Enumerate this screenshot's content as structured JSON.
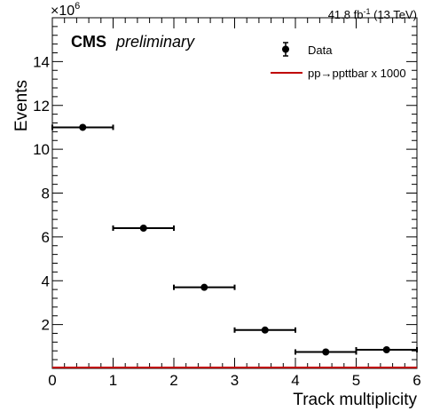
{
  "header": {
    "lumi_text": "41.8 fb",
    "lumi_sup": "-1",
    "lumi_energy": " (13 TeV)"
  },
  "labels": {
    "cms": "CMS",
    "preliminary": "preliminary",
    "exponent_base": "×10",
    "exponent_power": "6"
  },
  "legend": {
    "entries": [
      {
        "label": "Data",
        "style": "marker",
        "color": "#000000"
      },
      {
        "label": "pp→ppttbar x 1000",
        "style": "line",
        "color": "#c00000"
      }
    ]
  },
  "chart_data": {
    "type": "scatter",
    "xlabel": "Track multiplicity",
    "ylabel": "Events",
    "xlim": [
      0,
      6
    ],
    "ylim": [
      0,
      16000000
    ],
    "x_ticks": [
      0,
      1,
      2,
      3,
      4,
      5,
      6
    ],
    "x_tick_labels": [
      "0",
      "1",
      "2",
      "3",
      "4",
      "5",
      "6"
    ],
    "y_ticks": [
      2000000,
      4000000,
      6000000,
      8000000,
      10000000,
      12000000,
      14000000
    ],
    "y_tick_labels": [
      "2",
      "4",
      "6",
      "8",
      "10",
      "12",
      "14"
    ],
    "series": [
      {
        "name": "Data",
        "color": "#000000",
        "bin_edges": [
          [
            0,
            1
          ],
          [
            1,
            2
          ],
          [
            2,
            3
          ],
          [
            3,
            4
          ],
          [
            4,
            5
          ],
          [
            5,
            6
          ]
        ],
        "x": [
          0.5,
          1.5,
          2.5,
          3.5,
          4.5,
          5.5
        ],
        "values": [
          11000000,
          6400000,
          3700000,
          1750000,
          750000,
          850000
        ]
      },
      {
        "name": "pp→ppttbar x 1000",
        "color": "#c00000",
        "x": [
          0.5,
          1.5,
          2.5,
          3.5,
          4.5,
          5.5
        ],
        "values": [
          0,
          0,
          0,
          0,
          0,
          0
        ]
      }
    ]
  }
}
